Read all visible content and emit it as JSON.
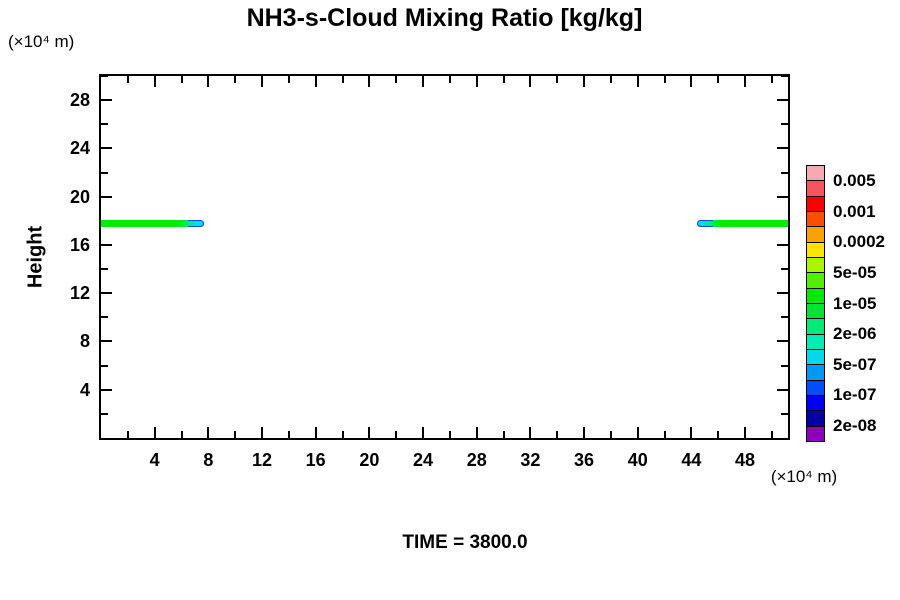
{
  "title": "NH3-s-Cloud Mixing Ratio [kg/kg]",
  "time_label": "TIME = 3800.0",
  "axes": {
    "y_axis_title": "Height",
    "y_axis_unit": "(×10⁴ m)",
    "x_axis_unit": "(×10⁴ m)"
  },
  "chart_data": {
    "type": "heatmap",
    "title": "NH3-s-Cloud Mixing Ratio [kg/kg]",
    "xlabel": "(×10⁴ m)",
    "ylabel": "Height",
    "y_unit": "(×10⁴ m)",
    "xlim": [
      0,
      51.2
    ],
    "ylim": [
      0,
      30
    ],
    "x_major_ticks": [
      4,
      8,
      12,
      16,
      20,
      24,
      28,
      32,
      36,
      40,
      44,
      48
    ],
    "x_minor_ticks": [
      2,
      6,
      10,
      14,
      18,
      22,
      26,
      30,
      34,
      38,
      42,
      46,
      50
    ],
    "y_major_ticks": [
      4,
      8,
      12,
      16,
      20,
      24,
      28
    ],
    "y_minor_ticks": [
      2,
      6,
      10,
      14,
      18,
      22,
      26,
      30
    ],
    "grid": false,
    "time": 3800.0,
    "legend_position": "right",
    "colorbar": {
      "labels_top_to_bottom": [
        "0.005",
        "0.001",
        "0.0002",
        "5e-05",
        "1e-05",
        "2e-06",
        "5e-07",
        "1e-07",
        "2e-08"
      ],
      "colors_top_to_bottom": [
        "#F7A8B0",
        "#F5555F",
        "#FA0000",
        "#FA4E00",
        "#FAA300",
        "#FAE600",
        "#A9F500",
        "#55EE00",
        "#00E800",
        "#00E436",
        "#00EA78",
        "#00ECB4",
        "#00D9F0",
        "#0099F5",
        "#004EF8",
        "#0000F0",
        "#0000A5",
        "#8C00B9"
      ]
    },
    "bands": [
      {
        "name": "left-cloud-band",
        "x_start": 0,
        "x_end": 7.7,
        "y_center": 17.75,
        "thickness": 0.55,
        "tip_side": "right",
        "body_color": "#00EC00",
        "mid_color": "#00E87E",
        "tip_color": "#00D9F0",
        "tip_edge_color": "#0A4AF0"
      },
      {
        "name": "right-cloud-band",
        "x_start": 44.4,
        "x_end": 51.2,
        "y_center": 17.75,
        "thickness": 0.55,
        "tip_side": "left",
        "body_color": "#00EC00",
        "mid_color": "#00E87E",
        "tip_color": "#00D9F0",
        "tip_edge_color": "#0A4AF0"
      }
    ]
  }
}
